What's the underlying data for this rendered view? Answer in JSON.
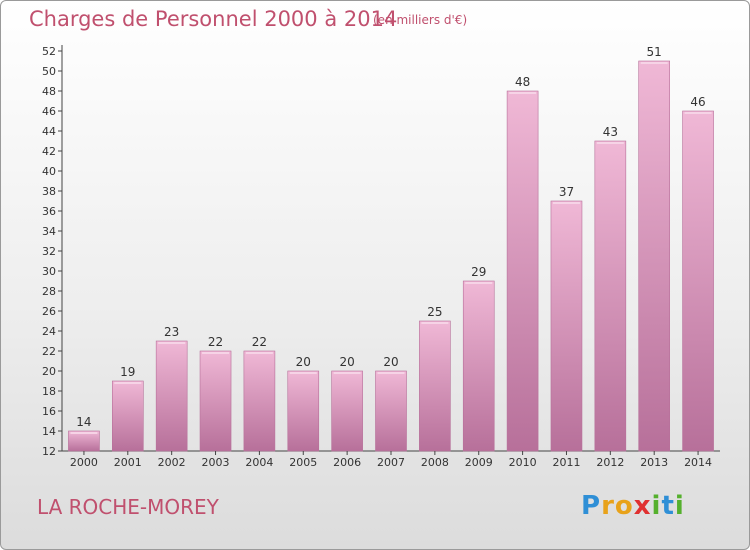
{
  "title": "Charges de Personnel 2000 à 2014",
  "unit": "(en milliers d'€)",
  "commune": "LA ROCHE-MOREY",
  "logo": {
    "text": "Proxiti",
    "letters": [
      {
        "ch": "P",
        "color": "#2f8fd6"
      },
      {
        "ch": "r",
        "color": "#e8a21a"
      },
      {
        "ch": "o",
        "color": "#e8a21a"
      },
      {
        "ch": "x",
        "color": "#e03030"
      },
      {
        "ch": "i",
        "color": "#55b02d"
      },
      {
        "ch": "t",
        "color": "#2f8fd6"
      },
      {
        "ch": "i",
        "color": "#55b02d"
      }
    ]
  },
  "colors": {
    "bar": "#d98fb6",
    "bar_light": "#f0b8d6",
    "bar_dark": "#b7709a",
    "title": "#c0506e",
    "grid": "#bbbbbb"
  },
  "chart_data": {
    "type": "bar",
    "title": "Charges de Personnel 2000 à 2014",
    "subtitle": "(en milliers d'€)",
    "xlabel": "",
    "ylabel": "",
    "categories": [
      "2000",
      "2001",
      "2002",
      "2003",
      "2004",
      "2005",
      "2006",
      "2007",
      "2008",
      "2009",
      "2010",
      "2011",
      "2012",
      "2013",
      "2014"
    ],
    "values": [
      14,
      19,
      23,
      22,
      22,
      20,
      20,
      20,
      25,
      29,
      48,
      37,
      43,
      51,
      46
    ],
    "ylim": [
      12,
      52
    ],
    "yticks": [
      12,
      14,
      16,
      18,
      20,
      22,
      24,
      26,
      28,
      30,
      32,
      34,
      36,
      38,
      40,
      42,
      44,
      46,
      48,
      50,
      52
    ],
    "grid": false,
    "legend": "none"
  }
}
